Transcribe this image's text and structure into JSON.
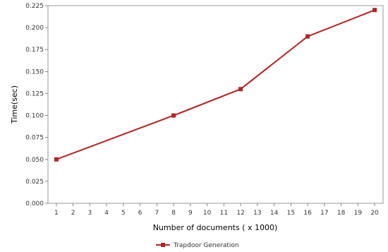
{
  "chart_data": {
    "type": "line",
    "title": "",
    "xlabel": "Number of documents ( x 1000)",
    "ylabel": "Time(sec)",
    "categories": [
      "1",
      "2",
      "3",
      "4",
      "5",
      "6",
      "7",
      "8",
      "9",
      "10",
      "11",
      "12",
      "13",
      "14",
      "15",
      "16",
      "17",
      "18",
      "19",
      "20"
    ],
    "ylim": [
      0,
      0.225
    ],
    "yticks": [
      "0.000",
      "0.025",
      "0.050",
      "0.075",
      "0.100",
      "0.125",
      "0.150",
      "0.175",
      "0.200",
      "0.225"
    ],
    "series": [
      {
        "name": "Trapdoor Generation",
        "color": "#b22222",
        "x": [
          "1",
          "8",
          "12",
          "16",
          "20"
        ],
        "values": [
          0.05,
          0.1,
          0.13,
          0.19,
          0.22
        ]
      }
    ],
    "grid": false,
    "legend": "bottom-center"
  }
}
